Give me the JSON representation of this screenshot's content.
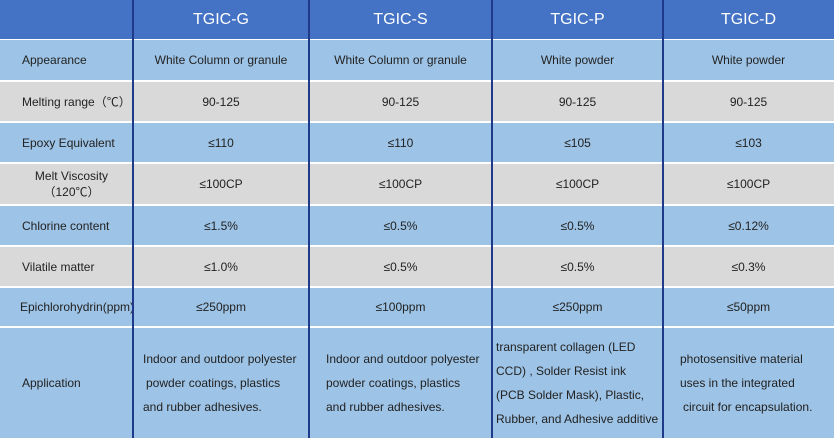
{
  "headers": [
    "",
    "TGIC-G",
    "TGIC-S",
    "TGIC-P",
    "TGIC-D"
  ],
  "rows": [
    {
      "label": "Appearance",
      "values": [
        "White Column or granule",
        "White Column or granule",
        "White powder",
        "White powder"
      ]
    },
    {
      "label": "Melting range（℃）",
      "values": [
        "90-125",
        "90-125",
        "90-125",
        "90-125"
      ]
    },
    {
      "label": "Epoxy Equivalent",
      "values": [
        "≤110",
        "≤110",
        "≤105",
        "≤103"
      ]
    },
    {
      "label_line1": "Melt Viscosity",
      "label_line2": "（120℃）",
      "values": [
        "≤100CP",
        "≤100CP",
        "≤100CP",
        "≤100CP"
      ]
    },
    {
      "label": "Chlorine content",
      "values": [
        "≤1.5%",
        "≤0.5%",
        "≤0.5%",
        "≤0.12%"
      ]
    },
    {
      "label": "Vilatile matter",
      "values": [
        "≤1.0%",
        "≤0.5%",
        "≤0.5%",
        "≤0.3%"
      ]
    },
    {
      "label": "Epichlorohydrin(ppm)",
      "values": [
        "≤250ppm",
        "≤100ppm",
        "≤250ppm",
        "≤50ppm"
      ]
    }
  ],
  "application": {
    "label": "Application",
    "g": [
      "Indoor and outdoor polyester",
      "powder coatings, plastics",
      "and rubber adhesives."
    ],
    "s": [
      "Indoor and outdoor polyester",
      "powder coatings, plastics",
      "and rubber adhesives."
    ],
    "p": [
      "transparent collagen (LED",
      "CCD) , Solder Resist ink",
      "(PCB Solder Mask),   Plastic,",
      "Rubber, and Adhesive additive"
    ],
    "d": [
      "photosensitive material",
      "uses in the integrated",
      "circuit for encapsulation."
    ]
  }
}
